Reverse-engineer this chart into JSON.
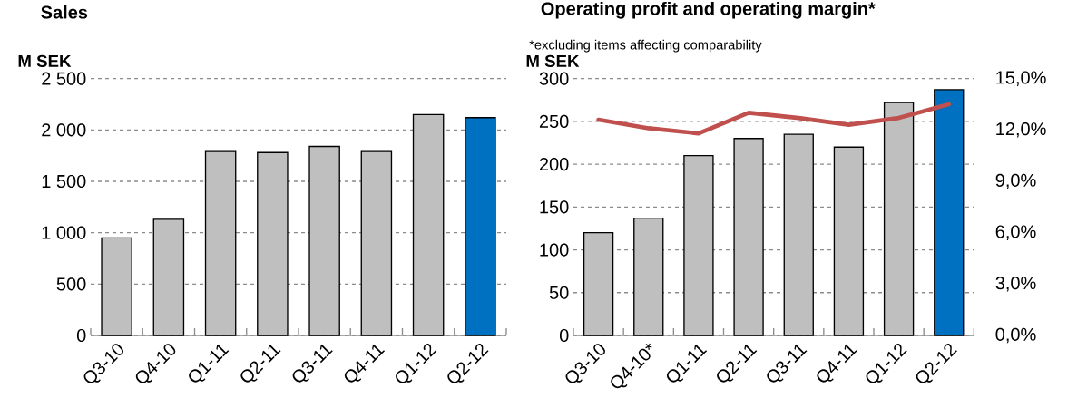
{
  "chart_data": [
    {
      "type": "bar",
      "title": "Sales",
      "ylabel": "M SEK",
      "categories": [
        "Q3-10",
        "Q4-10",
        "Q1-11",
        "Q2-11",
        "Q3-11",
        "Q4-11",
        "Q1-12",
        "Q2-12"
      ],
      "values": [
        950,
        1130,
        1790,
        1780,
        1840,
        1790,
        2150,
        2120
      ],
      "colors": [
        "#bfbfbf",
        "#bfbfbf",
        "#bfbfbf",
        "#bfbfbf",
        "#bfbfbf",
        "#bfbfbf",
        "#bfbfbf",
        "#0070c0"
      ],
      "ylim": [
        0,
        2500
      ],
      "yticks": [
        0,
        500,
        {
          "value": 1000,
          "label": "1 000"
        },
        {
          "value": 1500,
          "label": "1 500"
        },
        {
          "value": 2000,
          "label": "2 000"
        },
        {
          "value": 2500,
          "label": "2 500"
        }
      ],
      "grid": "y"
    },
    {
      "type": "bar",
      "title": "Operating profit and operating margin*",
      "subtitle": "*excluding items affecting comparability",
      "ylabel": "M SEK",
      "categories": [
        "Q3-10",
        "Q4-10*",
        "Q1-11",
        "Q2-11",
        "Q3-11",
        "Q4-11",
        "Q1-12",
        "Q2-12"
      ],
      "series": [
        {
          "type": "bar",
          "values": [
            120,
            137,
            210,
            230,
            235,
            220,
            272,
            287
          ],
          "colors": [
            "#bfbfbf",
            "#bfbfbf",
            "#bfbfbf",
            "#bfbfbf",
            "#bfbfbf",
            "#bfbfbf",
            "#bfbfbf",
            "#0070c0"
          ]
        },
        {
          "type": "line",
          "axis": "y2",
          "color": "#c0504d",
          "values": [
            12.6,
            12.1,
            11.8,
            13.0,
            12.7,
            12.3,
            12.7,
            13.5
          ]
        }
      ],
      "ylim": [
        0,
        300
      ],
      "yticks": [
        0,
        50,
        100,
        150,
        200,
        250,
        300
      ],
      "y2lim": [
        0,
        15
      ],
      "y2ticks": [
        {
          "value": 0,
          "label": "0,0%"
        },
        {
          "value": 3,
          "label": "3,0%"
        },
        {
          "value": 6,
          "label": "6,0%"
        },
        {
          "value": 9,
          "label": "9,0%"
        },
        {
          "value": 12,
          "label": "12,0%"
        },
        {
          "value": 15,
          "label": "15,0%"
        }
      ],
      "grid": "y"
    }
  ]
}
